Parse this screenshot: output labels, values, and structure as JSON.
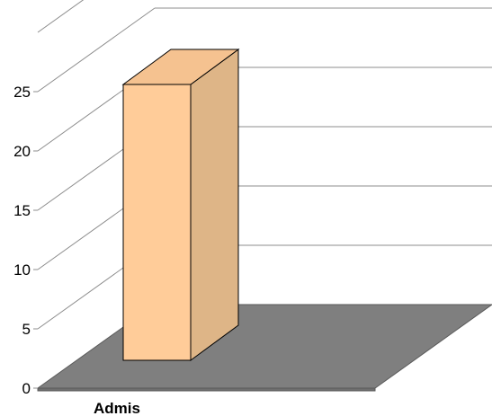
{
  "chart_data": {
    "type": "bar",
    "categories": [
      "Admis"
    ],
    "values": [
      24.5
    ],
    "ylim": [
      0,
      30
    ],
    "yticks": [
      0,
      5,
      10,
      15,
      20,
      25
    ],
    "grid": true,
    "legend": "none",
    "colors": {
      "bar_front": "#FFCC99",
      "bar_side": "#DEB587",
      "bar_top": "#F5C290",
      "floor": "#7F7F7F",
      "bar_edge": "#000000",
      "grid": "#8C8C8C"
    }
  }
}
